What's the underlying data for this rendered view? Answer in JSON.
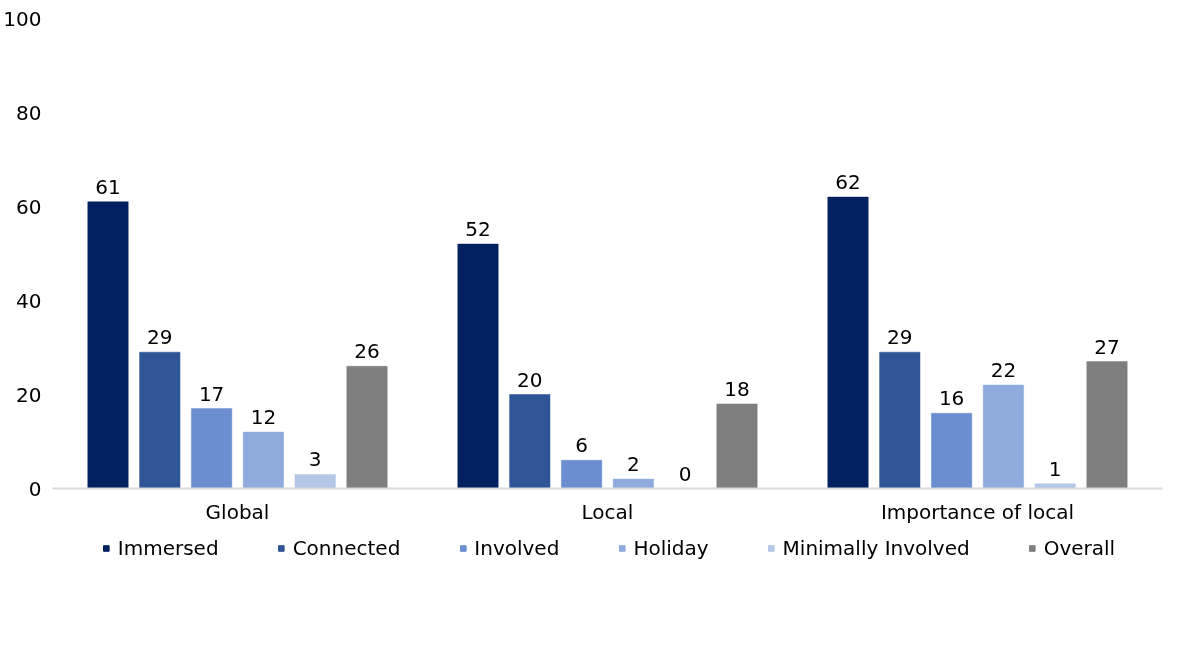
{
  "chart_data": {
    "type": "bar",
    "categories": [
      "Global",
      "Local",
      "Importance of local"
    ],
    "series": [
      {
        "name": "Immersed",
        "color": "#002060",
        "values": [
          61,
          52,
          62
        ]
      },
      {
        "name": "Connected",
        "color": "#2f5597",
        "values": [
          29,
          20,
          29
        ]
      },
      {
        "name": "Involved",
        "color": "#6a8ecf",
        "values": [
          17,
          6,
          16
        ]
      },
      {
        "name": "Holiday",
        "color": "#8faadc",
        "values": [
          12,
          2,
          22
        ]
      },
      {
        "name": "Minimally Involved",
        "color": "#b4c7e7",
        "values": [
          3,
          0,
          1
        ]
      },
      {
        "name": "Overall",
        "color": "#7f7f7f",
        "values": [
          26,
          18,
          27
        ]
      }
    ],
    "ylim": [
      0,
      100
    ],
    "yticks": [
      0,
      20,
      40,
      60,
      80,
      100
    ],
    "data_labels": true,
    "legend": "bottom",
    "grid": false
  }
}
